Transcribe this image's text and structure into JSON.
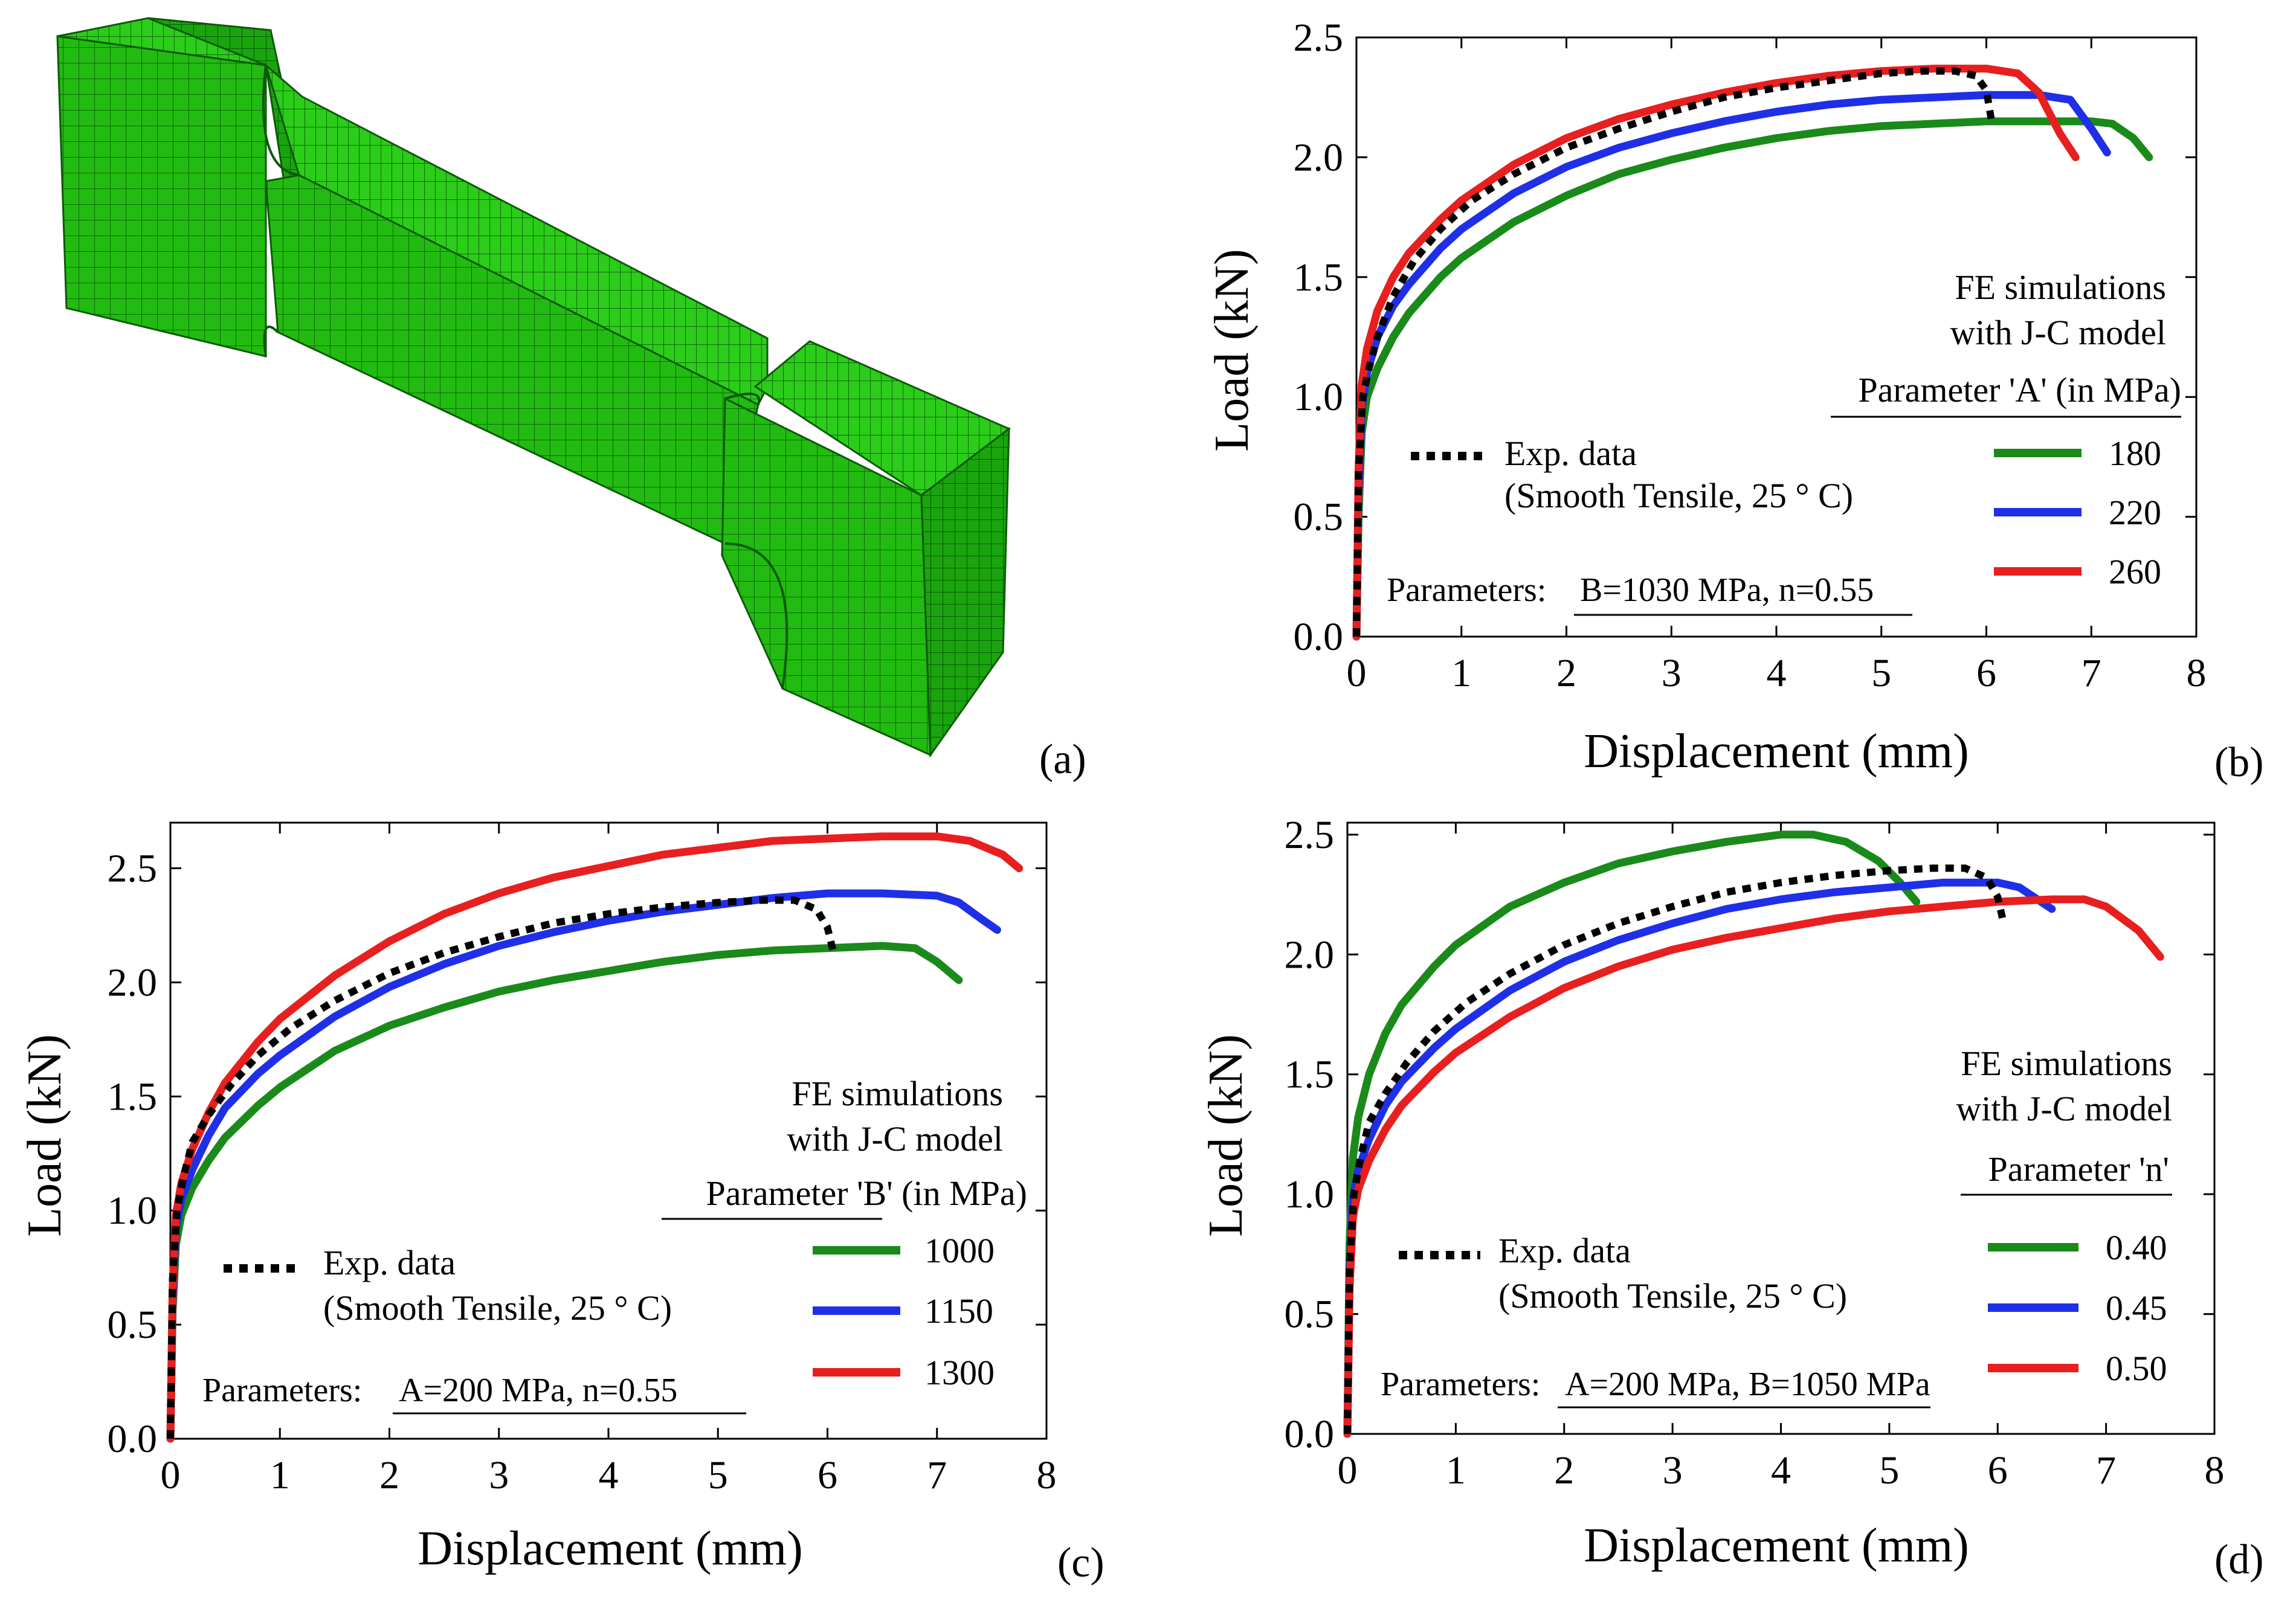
{
  "figure": {
    "panel_labels": [
      "(a)",
      "(b)",
      "(c)",
      "(d)"
    ],
    "mesh_panel": {
      "name": "3D FE mesh of smooth tensile specimen",
      "mesh_color": "#22bb11"
    }
  },
  "chart_data": [
    {
      "panel": "(b)",
      "type": "line",
      "xlabel": "Displacement (mm)",
      "ylabel": "Load (kN)",
      "xlim": [
        0,
        8
      ],
      "ylim": [
        0,
        2.5
      ],
      "xticks": [
        0,
        1,
        2,
        3,
        4,
        5,
        6,
        7,
        8
      ],
      "yticks": [
        0.0,
        0.5,
        1.0,
        1.5,
        2.0,
        2.5
      ],
      "ytick_labels": [
        "0.0",
        "0.5",
        "1.0",
        "1.5",
        "2.0",
        "2.5"
      ],
      "legend_title_lines": [
        "FE simulations",
        "with J-C model"
      ],
      "parameter_heading": "Parameter 'A' (in MPa)",
      "exp_label_lines": [
        "Exp. data",
        "(Smooth Tensile, 25 ° C)"
      ],
      "fixed_params_prefix": "Parameters:",
      "fixed_params_value": "B=1030 MPa, n=0.55",
      "exp": {
        "name": "Exp. data",
        "color": "#000000",
        "x": [
          0,
          0.02,
          0.06,
          0.12,
          0.2,
          0.35,
          0.55,
          0.8,
          1.1,
          1.5,
          2.0,
          2.5,
          3.0,
          3.5,
          4.0,
          4.5,
          5.0,
          5.4,
          5.7,
          5.9,
          6.0,
          6.05
        ],
        "y": [
          0,
          0.7,
          1.0,
          1.12,
          1.25,
          1.42,
          1.57,
          1.7,
          1.82,
          1.93,
          2.04,
          2.12,
          2.19,
          2.25,
          2.29,
          2.32,
          2.35,
          2.36,
          2.36,
          2.34,
          2.28,
          2.15
        ]
      },
      "series": [
        {
          "name": "180",
          "color": "#1a8a1a",
          "x": [
            0,
            0.02,
            0.05,
            0.1,
            0.2,
            0.35,
            0.5,
            0.8,
            1.0,
            1.5,
            2.0,
            2.5,
            3.0,
            3.5,
            4.0,
            4.5,
            5.0,
            5.5,
            6.0,
            6.5,
            7.0,
            7.2,
            7.4,
            7.55
          ],
          "y": [
            0,
            0.5,
            0.85,
            1.0,
            1.12,
            1.25,
            1.35,
            1.5,
            1.58,
            1.73,
            1.84,
            1.93,
            1.99,
            2.04,
            2.08,
            2.11,
            2.13,
            2.14,
            2.15,
            2.15,
            2.15,
            2.14,
            2.08,
            2.0
          ]
        },
        {
          "name": "220",
          "color": "#1f2fe8",
          "x": [
            0,
            0.02,
            0.05,
            0.1,
            0.2,
            0.35,
            0.5,
            0.8,
            1.0,
            1.5,
            2.0,
            2.5,
            3.0,
            3.5,
            4.0,
            4.5,
            5.0,
            5.5,
            6.0,
            6.5,
            6.8,
            7.0,
            7.15
          ],
          "y": [
            0,
            0.6,
            0.95,
            1.1,
            1.25,
            1.38,
            1.47,
            1.62,
            1.7,
            1.85,
            1.96,
            2.04,
            2.1,
            2.15,
            2.19,
            2.22,
            2.24,
            2.25,
            2.26,
            2.26,
            2.24,
            2.12,
            2.02
          ]
        },
        {
          "name": "260",
          "color": "#e81f1f",
          "x": [
            0,
            0.02,
            0.05,
            0.1,
            0.2,
            0.35,
            0.5,
            0.8,
            1.0,
            1.5,
            2.0,
            2.5,
            3.0,
            3.5,
            4.0,
            4.5,
            5.0,
            5.5,
            6.0,
            6.3,
            6.5,
            6.7,
            6.85
          ],
          "y": [
            0,
            0.7,
            1.05,
            1.2,
            1.36,
            1.5,
            1.6,
            1.74,
            1.82,
            1.97,
            2.08,
            2.16,
            2.22,
            2.27,
            2.31,
            2.34,
            2.36,
            2.37,
            2.37,
            2.35,
            2.27,
            2.1,
            2.0
          ]
        }
      ]
    },
    {
      "panel": "(c)",
      "type": "line",
      "xlabel": "Displacement (mm)",
      "ylabel": "Load (kN)",
      "xlim": [
        0,
        8
      ],
      "ylim": [
        0,
        2.7
      ],
      "xticks": [
        0,
        1,
        2,
        3,
        4,
        5,
        6,
        7,
        8
      ],
      "yticks": [
        0.0,
        0.5,
        1.0,
        1.5,
        2.0,
        2.5
      ],
      "ytick_labels": [
        "0.0",
        "0.5",
        "1.0",
        "1.5",
        "2.0",
        "2.5"
      ],
      "legend_title_lines": [
        "FE simulations",
        "with J-C model"
      ],
      "parameter_heading": "Parameter 'B' (in MPa)",
      "exp_label_lines": [
        "Exp. data",
        "(Smooth Tensile, 25 ° C)"
      ],
      "fixed_params_prefix": "Parameters:",
      "fixed_params_value": "A=200 MPa, n=0.55",
      "exp": {
        "name": "Exp. data",
        "color": "#000000",
        "x": [
          0,
          0.02,
          0.06,
          0.12,
          0.2,
          0.35,
          0.55,
          0.8,
          1.1,
          1.5,
          2.0,
          2.5,
          3.0,
          3.5,
          4.0,
          4.5,
          5.0,
          5.4,
          5.7,
          5.9,
          6.0,
          6.05
        ],
        "y": [
          0,
          0.7,
          1.0,
          1.15,
          1.3,
          1.42,
          1.55,
          1.68,
          1.8,
          1.92,
          2.04,
          2.13,
          2.2,
          2.26,
          2.3,
          2.33,
          2.35,
          2.36,
          2.36,
          2.32,
          2.24,
          2.14
        ]
      },
      "series": [
        {
          "name": "1000",
          "color": "#1a8a1a",
          "x": [
            0,
            0.02,
            0.05,
            0.1,
            0.2,
            0.35,
            0.5,
            0.8,
            1.0,
            1.5,
            2.0,
            2.5,
            3.0,
            3.5,
            4.0,
            4.5,
            5.0,
            5.5,
            6.0,
            6.5,
            6.8,
            7.0,
            7.2
          ],
          "y": [
            0,
            0.55,
            0.85,
            0.98,
            1.1,
            1.22,
            1.32,
            1.46,
            1.54,
            1.7,
            1.81,
            1.89,
            1.96,
            2.01,
            2.05,
            2.09,
            2.12,
            2.14,
            2.15,
            2.16,
            2.15,
            2.09,
            2.01
          ]
        },
        {
          "name": "1150",
          "color": "#1f2fe8",
          "x": [
            0,
            0.02,
            0.05,
            0.1,
            0.2,
            0.35,
            0.5,
            0.8,
            1.0,
            1.5,
            2.0,
            2.5,
            3.0,
            3.5,
            4.0,
            4.5,
            5.0,
            5.5,
            6.0,
            6.5,
            7.0,
            7.2,
            7.4,
            7.55
          ],
          "y": [
            0,
            0.6,
            0.92,
            1.05,
            1.18,
            1.33,
            1.45,
            1.6,
            1.68,
            1.85,
            1.98,
            2.08,
            2.16,
            2.22,
            2.27,
            2.31,
            2.34,
            2.37,
            2.39,
            2.39,
            2.38,
            2.35,
            2.28,
            2.23
          ]
        },
        {
          "name": "1300",
          "color": "#e81f1f",
          "x": [
            0,
            0.02,
            0.05,
            0.1,
            0.2,
            0.35,
            0.5,
            0.8,
            1.0,
            1.5,
            2.0,
            2.5,
            3.0,
            3.5,
            4.0,
            4.5,
            5.0,
            5.5,
            6.0,
            6.5,
            7.0,
            7.3,
            7.6,
            7.75
          ],
          "y": [
            0,
            0.65,
            0.98,
            1.12,
            1.27,
            1.43,
            1.56,
            1.74,
            1.84,
            2.03,
            2.18,
            2.3,
            2.39,
            2.46,
            2.51,
            2.56,
            2.59,
            2.62,
            2.63,
            2.64,
            2.64,
            2.62,
            2.56,
            2.5
          ]
        }
      ]
    },
    {
      "panel": "(d)",
      "type": "line",
      "xlabel": "Displacement (mm)",
      "ylabel": "Load (kN)",
      "xlim": [
        0,
        8
      ],
      "ylim": [
        0,
        2.55
      ],
      "xticks": [
        0,
        1,
        2,
        3,
        4,
        5,
        6,
        7,
        8
      ],
      "yticks": [
        0.0,
        0.5,
        1.0,
        1.5,
        2.0,
        2.5
      ],
      "ytick_labels": [
        "0.0",
        "0.5",
        "1.0",
        "1.5",
        "2.0",
        "2.5"
      ],
      "legend_title_lines": [
        "FE simulations",
        "with J-C model"
      ],
      "parameter_heading": "Parameter 'n'",
      "exp_label_lines": [
        "Exp. data",
        "(Smooth Tensile, 25 ° C)"
      ],
      "fixed_params_prefix": "Parameters:",
      "fixed_params_value": "A=200 MPa, B=1050 MPa",
      "exp": {
        "name": "Exp. data",
        "color": "#000000",
        "x": [
          0,
          0.02,
          0.06,
          0.12,
          0.2,
          0.35,
          0.55,
          0.8,
          1.1,
          1.5,
          2.0,
          2.5,
          3.0,
          3.5,
          4.0,
          4.5,
          5.0,
          5.4,
          5.7,
          5.9,
          6.0,
          6.05
        ],
        "y": [
          0,
          0.7,
          1.0,
          1.15,
          1.3,
          1.42,
          1.55,
          1.68,
          1.8,
          1.92,
          2.04,
          2.13,
          2.2,
          2.26,
          2.3,
          2.33,
          2.35,
          2.36,
          2.36,
          2.32,
          2.24,
          2.14
        ]
      },
      "series": [
        {
          "name": "0.40",
          "color": "#1a8a1a",
          "x": [
            0,
            0.02,
            0.05,
            0.1,
            0.2,
            0.35,
            0.5,
            0.8,
            1.0,
            1.5,
            2.0,
            2.5,
            3.0,
            3.5,
            4.0,
            4.3,
            4.6,
            4.9,
            5.1,
            5.25
          ],
          "y": [
            0,
            0.8,
            1.15,
            1.32,
            1.5,
            1.67,
            1.79,
            1.95,
            2.04,
            2.2,
            2.3,
            2.38,
            2.43,
            2.47,
            2.5,
            2.5,
            2.47,
            2.39,
            2.3,
            2.22
          ]
        },
        {
          "name": "0.45",
          "color": "#1f2fe8",
          "x": [
            0,
            0.02,
            0.05,
            0.1,
            0.2,
            0.35,
            0.5,
            0.8,
            1.0,
            1.5,
            2.0,
            2.5,
            3.0,
            3.5,
            4.0,
            4.5,
            5.0,
            5.5,
            6.0,
            6.2,
            6.4,
            6.5
          ],
          "y": [
            0,
            0.65,
            0.98,
            1.1,
            1.23,
            1.37,
            1.47,
            1.61,
            1.69,
            1.85,
            1.97,
            2.06,
            2.13,
            2.19,
            2.23,
            2.26,
            2.28,
            2.3,
            2.3,
            2.28,
            2.22,
            2.19
          ]
        },
        {
          "name": "0.50",
          "color": "#e81f1f",
          "x": [
            0,
            0.02,
            0.05,
            0.1,
            0.2,
            0.35,
            0.5,
            0.8,
            1.0,
            1.5,
            2.0,
            2.5,
            3.0,
            3.5,
            4.0,
            4.5,
            5.0,
            5.5,
            6.0,
            6.5,
            6.8,
            7.0,
            7.3,
            7.5
          ],
          "y": [
            0,
            0.6,
            0.9,
            1.02,
            1.14,
            1.27,
            1.37,
            1.51,
            1.59,
            1.74,
            1.86,
            1.95,
            2.02,
            2.07,
            2.11,
            2.15,
            2.18,
            2.2,
            2.22,
            2.23,
            2.23,
            2.2,
            2.1,
            1.99
          ]
        }
      ]
    }
  ]
}
